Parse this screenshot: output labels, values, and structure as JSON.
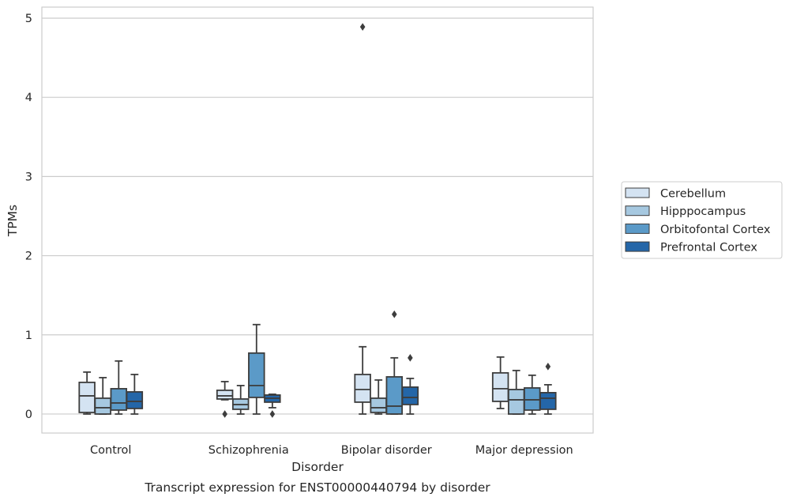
{
  "chart_data": {
    "type": "box",
    "xlabel": "Disorder",
    "ylabel": "TPMs",
    "caption": "Transcript expression for ENST00000440794 by disorder",
    "ylim": [
      -0.24,
      5.14
    ],
    "yticks": [
      0,
      1,
      2,
      3,
      4,
      5
    ],
    "grid": "horizontal",
    "legend_position": "right",
    "categories": [
      "Control",
      "Schizophrenia",
      "Bipolar disorder",
      "Major depression"
    ],
    "series": [
      {
        "name": "Cerebellum",
        "color": "#d4e3f2",
        "boxes": [
          {
            "whislo": 0.0,
            "q1": 0.02,
            "med": 0.23,
            "q3": 0.4,
            "whishi": 0.53,
            "fliers": []
          },
          {
            "whislo": 0.18,
            "q1": 0.19,
            "med": 0.23,
            "q3": 0.3,
            "whishi": 0.41,
            "fliers": [
              0.0
            ]
          },
          {
            "whislo": 0.0,
            "q1": 0.15,
            "med": 0.31,
            "q3": 0.5,
            "whishi": 0.85,
            "fliers": [
              4.89
            ]
          },
          {
            "whislo": 0.07,
            "q1": 0.16,
            "med": 0.32,
            "q3": 0.52,
            "whishi": 0.72,
            "fliers": []
          }
        ]
      },
      {
        "name": "Hipppocampus",
        "color": "#a6c8e0",
        "boxes": [
          {
            "whislo": 0.0,
            "q1": 0.0,
            "med": 0.08,
            "q3": 0.2,
            "whishi": 0.46,
            "fliers": []
          },
          {
            "whislo": 0.0,
            "q1": 0.06,
            "med": 0.12,
            "q3": 0.19,
            "whishi": 0.36,
            "fliers": []
          },
          {
            "whislo": 0.0,
            "q1": 0.02,
            "med": 0.08,
            "q3": 0.2,
            "whishi": 0.43,
            "fliers": []
          },
          {
            "whislo": 0.0,
            "q1": 0.0,
            "med": 0.18,
            "q3": 0.31,
            "whishi": 0.55,
            "fliers": []
          }
        ]
      },
      {
        "name": "Orbitofontal Cortex",
        "color": "#5b9ac8",
        "boxes": [
          {
            "whislo": 0.0,
            "q1": 0.05,
            "med": 0.14,
            "q3": 0.32,
            "whishi": 0.67,
            "fliers": []
          },
          {
            "whislo": 0.0,
            "q1": 0.21,
            "med": 0.36,
            "q3": 0.77,
            "whishi": 1.13,
            "fliers": []
          },
          {
            "whislo": 0.0,
            "q1": 0.0,
            "med": 0.1,
            "q3": 0.47,
            "whishi": 0.71,
            "fliers": [
              1.26
            ]
          },
          {
            "whislo": 0.0,
            "q1": 0.05,
            "med": 0.18,
            "q3": 0.33,
            "whishi": 0.49,
            "fliers": []
          }
        ]
      },
      {
        "name": "Prefrontal Cortex",
        "color": "#2466a8",
        "boxes": [
          {
            "whislo": 0.0,
            "q1": 0.07,
            "med": 0.16,
            "q3": 0.28,
            "whishi": 0.5,
            "fliers": []
          },
          {
            "whislo": 0.08,
            "q1": 0.15,
            "med": 0.2,
            "q3": 0.24,
            "whishi": 0.25,
            "fliers": [
              0.0
            ]
          },
          {
            "whislo": 0.0,
            "q1": 0.12,
            "med": 0.21,
            "q3": 0.34,
            "whishi": 0.45,
            "fliers": [
              0.71
            ]
          },
          {
            "whislo": 0.0,
            "q1": 0.06,
            "med": 0.2,
            "q3": 0.27,
            "whishi": 0.37,
            "fliers": [
              0.6
            ]
          }
        ]
      }
    ]
  }
}
